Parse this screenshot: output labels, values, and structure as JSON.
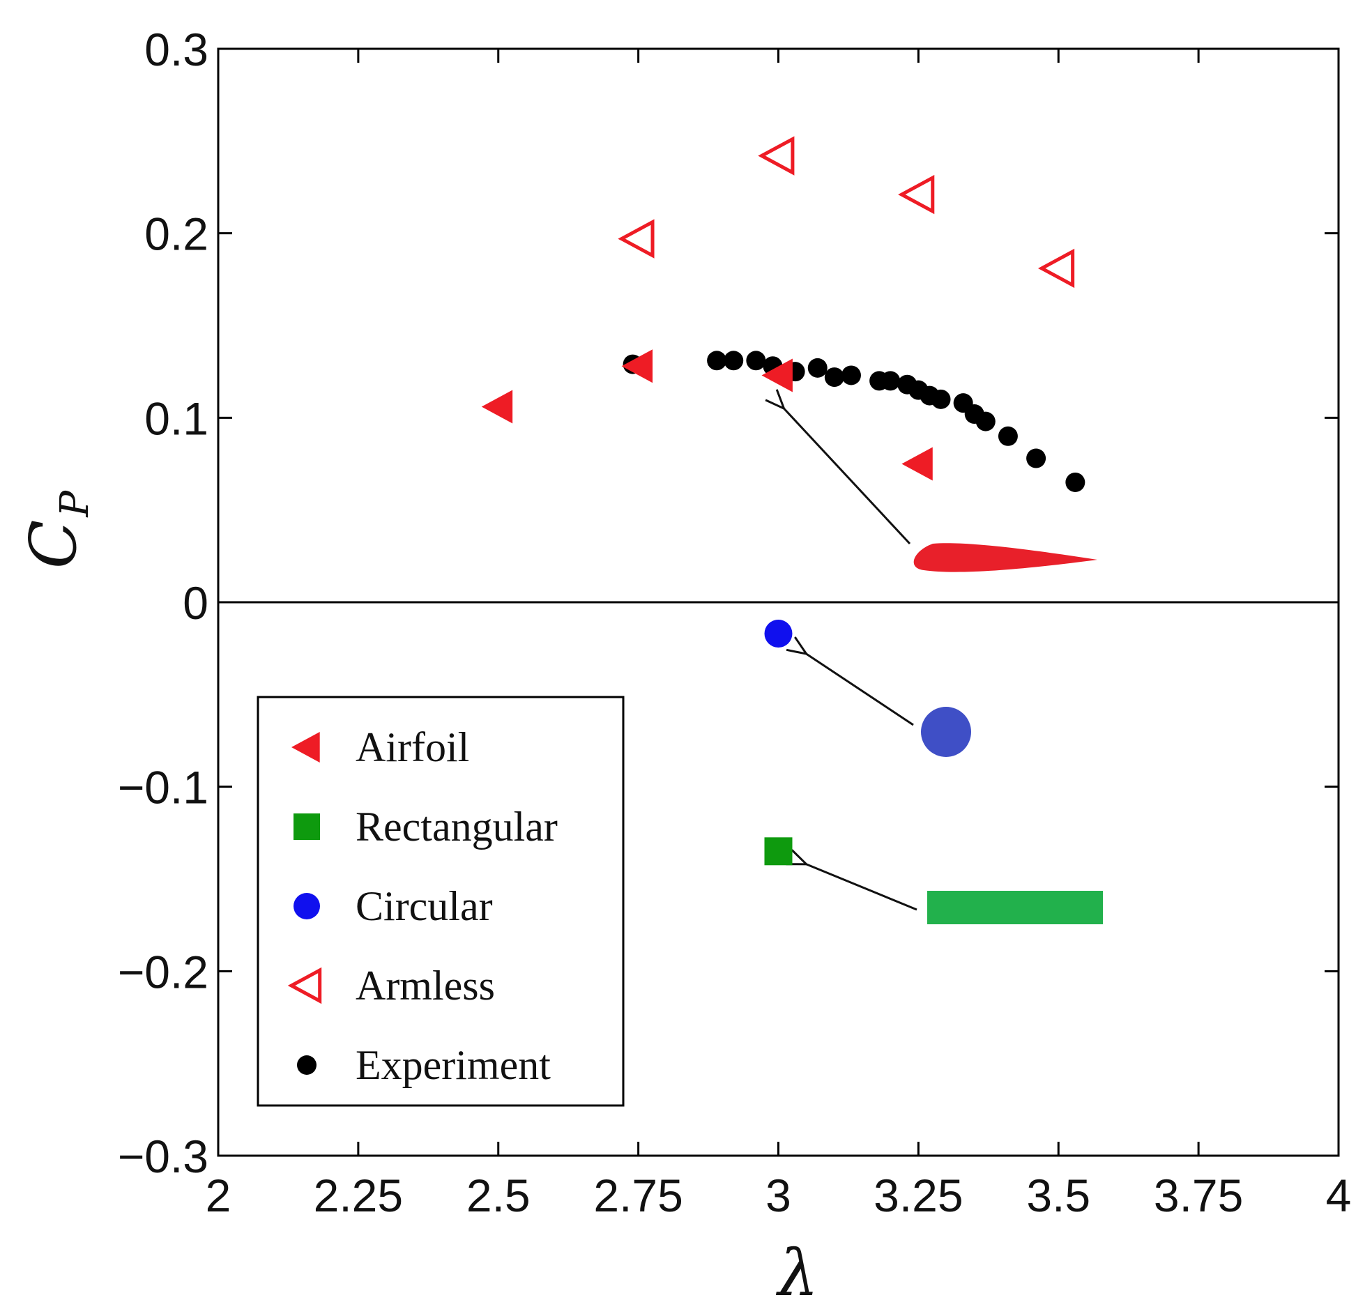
{
  "chart_data": {
    "type": "scatter",
    "xlabel": "λ",
    "ylabel": "C",
    "ylabel_subscript": "P",
    "xlim": [
      2,
      4
    ],
    "ylim": [
      -0.3,
      0.3
    ],
    "x_ticks": [
      2,
      2.25,
      2.5,
      2.75,
      3,
      3.25,
      3.5,
      3.75,
      4
    ],
    "x_tick_labels": [
      "2",
      "2.25",
      "2.5",
      "2.75",
      "3",
      "3.25",
      "3.5",
      "3.75",
      "4"
    ],
    "y_ticks": [
      0.3,
      0.2,
      0.1,
      0,
      -0.1,
      -0.2,
      -0.3
    ],
    "y_tick_labels": [
      "0.3",
      "0.2",
      "0.1",
      "0",
      "−0.1",
      "−0.2",
      "−0.3"
    ],
    "zero_line": true,
    "legend_position": "lower-left",
    "series": [
      {
        "name": "Airfoil",
        "marker": "triangle-left-filled",
        "color": "#ee1c25",
        "x": [
          2.5,
          2.75,
          3.0,
          3.25
        ],
        "y": [
          0.106,
          0.128,
          0.123,
          0.075
        ]
      },
      {
        "name": "Rectangular",
        "marker": "square-filled",
        "color": "#0e9a0e",
        "x": [
          3.0
        ],
        "y": [
          -0.135
        ]
      },
      {
        "name": "Circular",
        "marker": "circle-filled",
        "color": "#1010ee",
        "x": [
          3.0
        ],
        "y": [
          -0.017
        ]
      },
      {
        "name": "Armless",
        "marker": "triangle-left-open",
        "color": "#ee1c25",
        "x": [
          2.75,
          3.0,
          3.25,
          3.5
        ],
        "y": [
          0.197,
          0.242,
          0.221,
          0.181
        ]
      },
      {
        "name": "Experiment",
        "marker": "circle-filled",
        "color": "#000000",
        "x": [
          2.74,
          2.89,
          2.92,
          2.96,
          2.99,
          3.03,
          3.07,
          3.1,
          3.13,
          3.18,
          3.2,
          3.23,
          3.25,
          3.27,
          3.29,
          3.33,
          3.35,
          3.37,
          3.41,
          3.46,
          3.53
        ],
        "y": [
          0.129,
          0.131,
          0.131,
          0.131,
          0.128,
          0.125,
          0.127,
          0.122,
          0.123,
          0.12,
          0.12,
          0.118,
          0.115,
          0.112,
          0.11,
          0.108,
          0.102,
          0.098,
          0.09,
          0.078,
          0.065
        ]
      }
    ],
    "annotations": [
      {
        "shape": "airfoil-profile",
        "color": "#e8202a",
        "arrow_to": {
          "x": 3.01,
          "y": 0.105
        }
      },
      {
        "shape": "circle-profile",
        "color": "#3f4fc6",
        "arrow_to": {
          "x": 3.05,
          "y": -0.028
        }
      },
      {
        "shape": "rectangle-profile",
        "color": "#22b14c",
        "arrow_to": {
          "x": 3.05,
          "y": -0.142
        }
      }
    ]
  }
}
